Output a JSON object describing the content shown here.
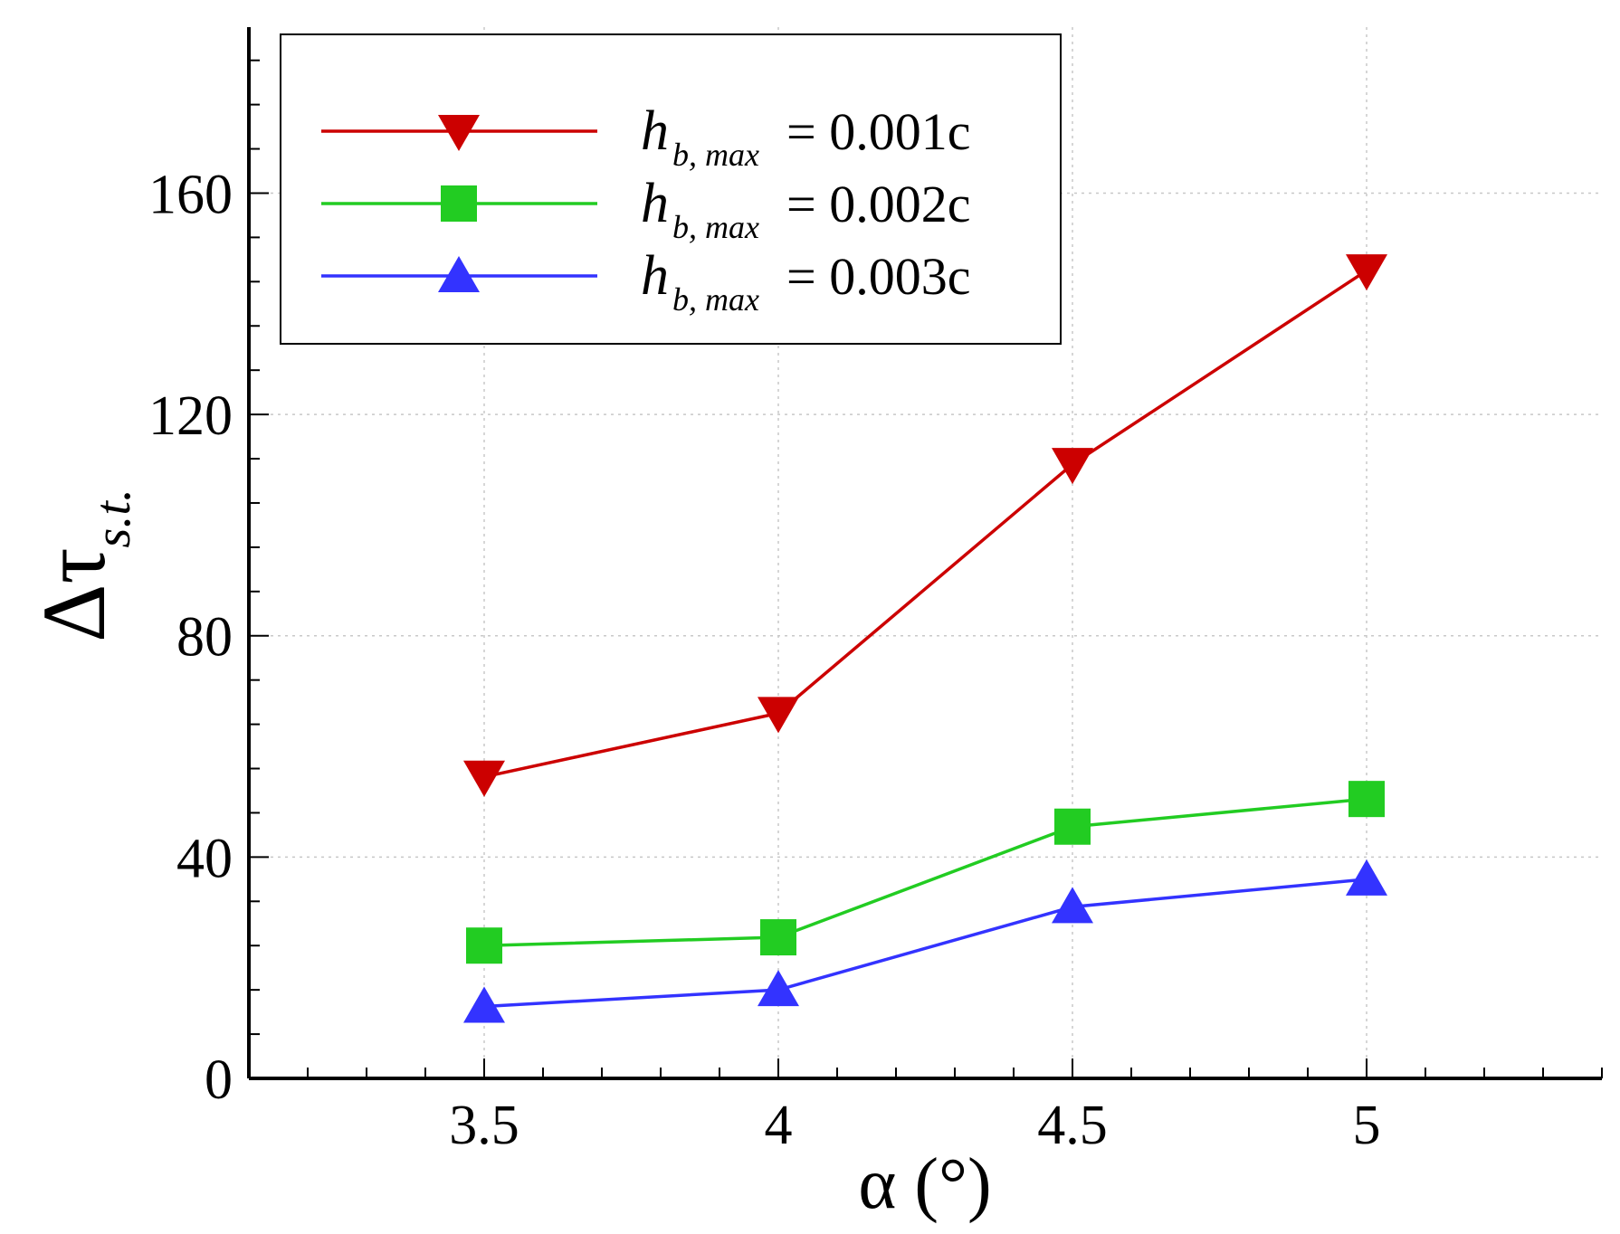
{
  "chart_data": {
    "type": "line",
    "x": [
      3.5,
      4,
      4.5,
      5
    ],
    "xlim": [
      3.1,
      5.4
    ],
    "ylim": [
      0,
      190
    ],
    "xticks": [
      3.5,
      4,
      4.5,
      5
    ],
    "xtick_labels": [
      "3.5",
      "4",
      "4.5",
      "5"
    ],
    "yticks": [
      0,
      40,
      80,
      120,
      160
    ],
    "ytick_labels": [
      "0",
      "40",
      "80",
      "120",
      "160"
    ],
    "x_minor_step": 0.1,
    "y_minor_step": 8,
    "grid": true,
    "xlabel": "α (°)",
    "ylabel": {
      "main": "Δτ",
      "subscript": "s.t."
    },
    "legend_position": "top-left",
    "series": [
      {
        "name": "h_b,max = 0.001c",
        "label_h": "h",
        "label_sub": "b, max",
        "label_value": "= 0.001c",
        "color": "#cc0000",
        "marker": "triangle-down",
        "values": [
          54.5,
          66,
          111,
          146
        ]
      },
      {
        "name": "h_b,max = 0.002c",
        "label_h": "h",
        "label_sub": "b, max",
        "label_value": "= 0.002c",
        "color": "#22cc22",
        "marker": "square",
        "values": [
          24,
          25.5,
          45.5,
          50.5
        ]
      },
      {
        "name": "h_b,max = 0.003c",
        "label_h": "h",
        "label_sub": "b, max",
        "label_value": "= 0.003c",
        "color": "#3333ff",
        "marker": "triangle-up",
        "values": [
          13,
          16,
          31,
          36
        ]
      }
    ]
  }
}
